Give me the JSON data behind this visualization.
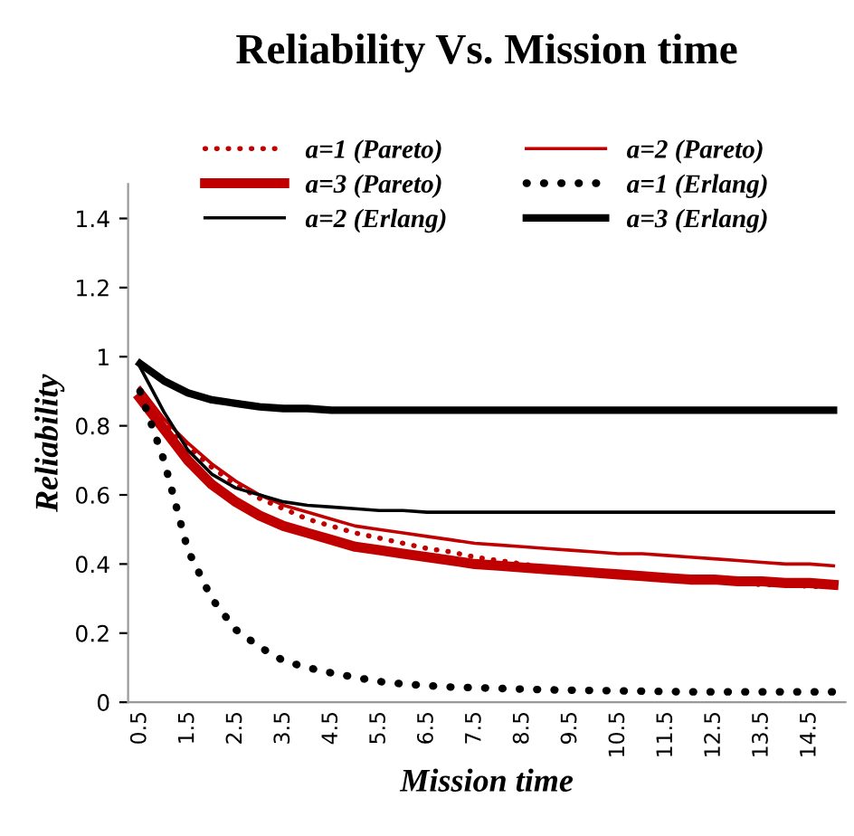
{
  "chart_data": {
    "type": "line",
    "title": "Reliability Vs. Mission time",
    "xlabel": "Mission time",
    "ylabel": "Reliability",
    "categories": [
      "0.5",
      null,
      "1.5",
      null,
      "2.5",
      null,
      "3.5",
      null,
      "4.5",
      null,
      "5.5",
      null,
      "6.5",
      null,
      "7.5",
      null,
      "8.5",
      null,
      "9.5",
      null,
      "10.5",
      null,
      "11.5",
      null,
      "12.5",
      null,
      "13.5",
      null,
      "14.5",
      null
    ],
    "ylim": [
      0,
      1.5
    ],
    "yticks": [
      0,
      0.2,
      0.4,
      0.6,
      0.8,
      1,
      1.2,
      1.4
    ],
    "grid": false,
    "legend": "top",
    "marker": "none",
    "series": [
      {
        "name": "a=1 (Pareto)",
        "color": "#c00000",
        "line_style": "dotted",
        "values": [
          0.9,
          0.81,
          0.74,
          0.68,
          0.63,
          0.59,
          0.56,
          0.53,
          0.51,
          0.49,
          0.475,
          0.46,
          0.445,
          0.435,
          0.42,
          0.41,
          0.4,
          0.39,
          0.385,
          0.375,
          0.37,
          0.365,
          0.36,
          0.355,
          0.35,
          0.345,
          0.34,
          0.34,
          0.335,
          0.335
        ]
      },
      {
        "name": "a=2 (Pareto)",
        "color": "#c00000",
        "line_style": "solid",
        "values": [
          0.91,
          0.82,
          0.75,
          0.69,
          0.64,
          0.6,
          0.57,
          0.55,
          0.53,
          0.51,
          0.5,
          0.49,
          0.48,
          0.47,
          0.46,
          0.455,
          0.45,
          0.445,
          0.44,
          0.435,
          0.43,
          0.43,
          0.425,
          0.42,
          0.415,
          0.41,
          0.405,
          0.4,
          0.4,
          0.395
        ]
      },
      {
        "name": "a=3 (Pareto)",
        "color": "#c00000",
        "line_style": "solid",
        "values": [
          0.88,
          0.79,
          0.7,
          0.63,
          0.58,
          0.54,
          0.51,
          0.49,
          0.47,
          0.45,
          0.44,
          0.43,
          0.42,
          0.41,
          0.4,
          0.395,
          0.39,
          0.385,
          0.38,
          0.375,
          0.37,
          0.365,
          0.36,
          0.355,
          0.355,
          0.35,
          0.35,
          0.345,
          0.345,
          0.34
        ]
      },
      {
        "name": "a=1 (Erlang)",
        "color": "#000000",
        "line_style": "dotted",
        "values": [
          0.9,
          0.7,
          0.44,
          0.3,
          0.21,
          0.16,
          0.12,
          0.1,
          0.085,
          0.072,
          0.06,
          0.053,
          0.048,
          0.044,
          0.042,
          0.04,
          0.038,
          0.036,
          0.035,
          0.034,
          0.033,
          0.032,
          0.031,
          0.03,
          0.03,
          0.03,
          0.03,
          0.03,
          0.03,
          0.03
        ]
      },
      {
        "name": "a=2 (Erlang)",
        "color": "#000000",
        "line_style": "solid",
        "values": [
          0.97,
          0.84,
          0.73,
          0.66,
          0.62,
          0.6,
          0.58,
          0.57,
          0.565,
          0.56,
          0.555,
          0.555,
          0.55,
          0.55,
          0.55,
          0.55,
          0.55,
          0.55,
          0.55,
          0.55,
          0.55,
          0.55,
          0.55,
          0.55,
          0.55,
          0.55,
          0.55,
          0.55,
          0.55,
          0.55
        ]
      },
      {
        "name": "a=3 (Erlang)",
        "color": "#000000",
        "line_style": "solid",
        "values": [
          0.98,
          0.93,
          0.895,
          0.875,
          0.865,
          0.855,
          0.85,
          0.85,
          0.845,
          0.845,
          0.845,
          0.845,
          0.845,
          0.845,
          0.845,
          0.845,
          0.845,
          0.845,
          0.845,
          0.845,
          0.845,
          0.845,
          0.845,
          0.845,
          0.845,
          0.845,
          0.845,
          0.845,
          0.845,
          0.845
        ]
      }
    ]
  }
}
